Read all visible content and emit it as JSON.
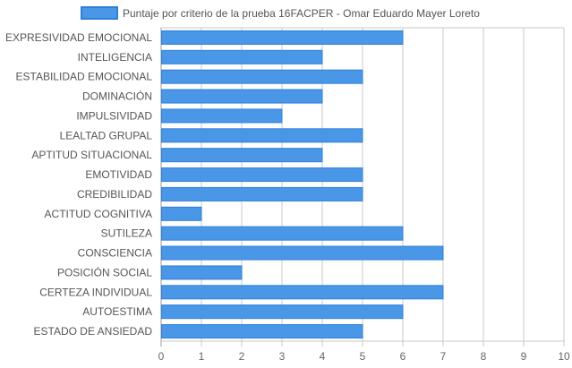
{
  "chart_data": {
    "type": "bar",
    "orientation": "horizontal",
    "categories": [
      "EXPRESIVIDAD EMOCIONAL",
      "INTELIGENCIA",
      "ESTABILIDAD EMOCIONAL",
      "DOMINACIÓN",
      "IMPULSIVIDAD",
      "LEALTAD GRUPAL",
      "APTITUD SITUACIONAL",
      "EMOTIVIDAD",
      "CREDIBILIDAD",
      "ACTITUD COGNITIVA",
      "SUTILEZA",
      "CONSCIENCIA",
      "POSICIÓN SOCIAL",
      "CERTEZA INDIVIDUAL",
      "AUTOESTIMA",
      "ESTADO DE ANSIEDAD"
    ],
    "series": [
      {
        "name": "Puntaje por criterio de la prueba 16FACPER - Omar Eduardo Mayer Loreto",
        "values": [
          6,
          4,
          5,
          4,
          3,
          5,
          4,
          5,
          5,
          1,
          6,
          7,
          2,
          7,
          6,
          5
        ]
      }
    ],
    "xlim": [
      0,
      10
    ],
    "xticks": [
      "0",
      "1",
      "2",
      "3",
      "4",
      "5",
      "6",
      "7",
      "8",
      "9",
      "10"
    ],
    "grid": true,
    "legend_position": "top",
    "colors": {
      "bar_fill": "#4a97e8",
      "bar_stroke": "#2f7fd9",
      "grid": "#c8c8c8",
      "axis": "#999999"
    }
  }
}
